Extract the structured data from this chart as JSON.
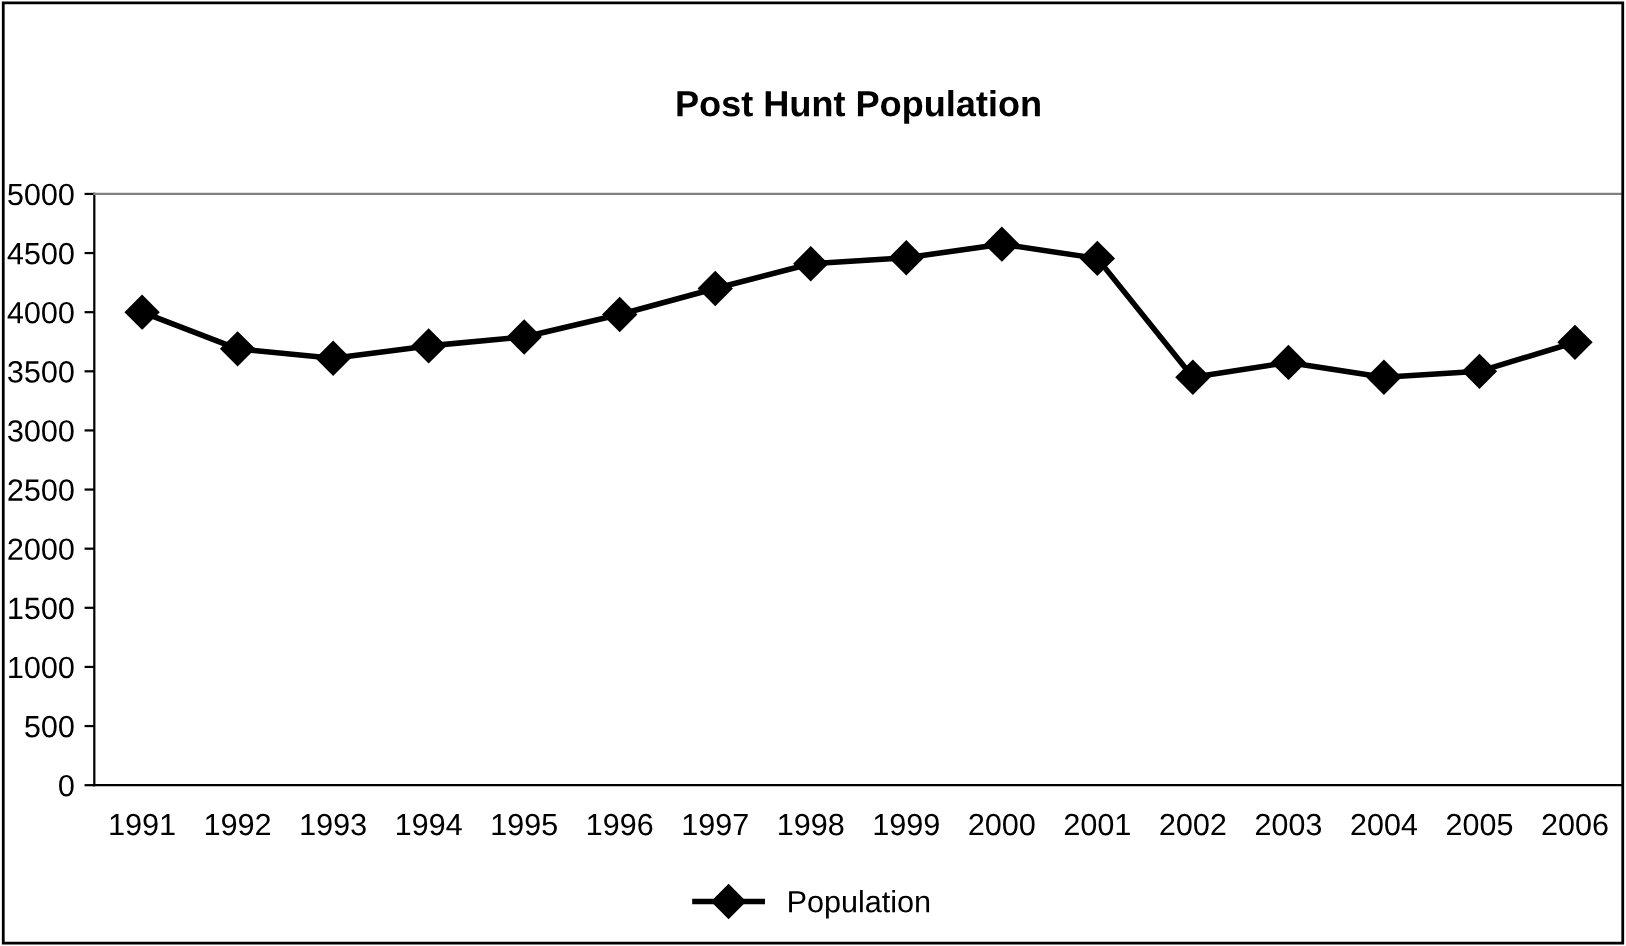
{
  "chart_data": {
    "type": "line",
    "title": "Post Hunt Population",
    "categories": [
      "1991",
      "1992",
      "1993",
      "1994",
      "1995",
      "1996",
      "1997",
      "1998",
      "1999",
      "2000",
      "2001",
      "2002",
      "2003",
      "2004",
      "2005",
      "2006"
    ],
    "series": [
      {
        "name": "Population",
        "color": "#000000",
        "values": [
          4000,
          3690,
          3610,
          3715,
          3790,
          3980,
          4200,
          4410,
          4460,
          4575,
          4455,
          3450,
          3575,
          3450,
          3500,
          3745
        ]
      }
    ],
    "ylim": [
      0,
      5000
    ],
    "yticks": [
      0,
      500,
      1000,
      1500,
      2000,
      2500,
      3000,
      3500,
      4000,
      4500,
      5000
    ],
    "grid": false,
    "legend": "bottom",
    "marker": "diamond",
    "line_style": "solid"
  }
}
